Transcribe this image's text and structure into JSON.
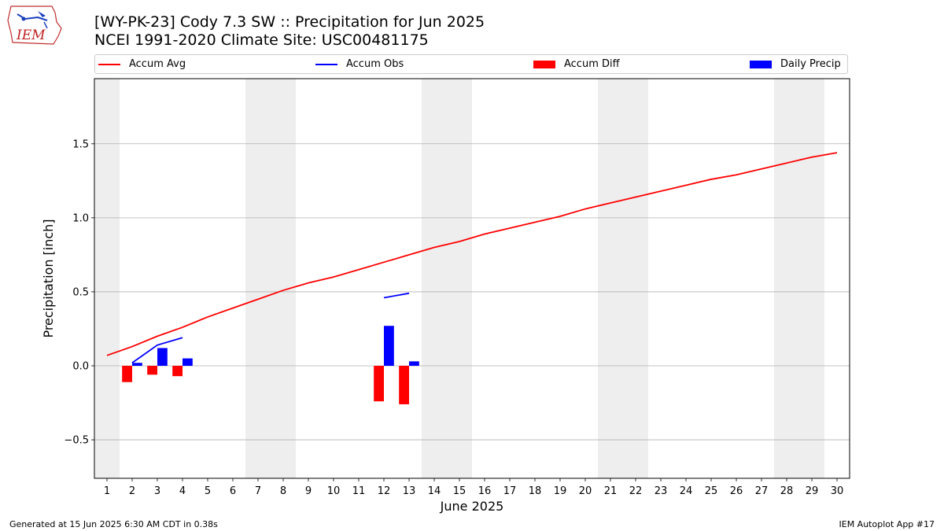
{
  "header": {
    "title_line1": "[WY-PK-23] Cody 7.3 SW :: Precipitation for Jun 2025",
    "title_line2": "NCEI 1991-2020 Climate Site: USC00481175",
    "logo_text": "IEM"
  },
  "footer": {
    "left": "Generated at 15 Jun 2025 6:30 AM CDT in 0.38s",
    "right": "IEM Autoplot App #17"
  },
  "colors": {
    "avg": "#ff0000",
    "obs": "#0000ff",
    "diff": "#ff0000",
    "daily": "#0000ff",
    "weekend_shade": "#eeeeee",
    "grid": "#b0b0b0"
  },
  "chart_data": {
    "type": "line",
    "xlabel": "June 2025",
    "ylabel": "Precipitation [inch]",
    "xlim": [
      0.5,
      30.5
    ],
    "ylim": [
      -0.76,
      1.94
    ],
    "xticks": [
      1,
      2,
      3,
      4,
      5,
      6,
      7,
      8,
      9,
      10,
      11,
      12,
      13,
      14,
      15,
      16,
      17,
      18,
      19,
      20,
      21,
      22,
      23,
      24,
      25,
      26,
      27,
      28,
      29,
      30
    ],
    "yticks": [
      -0.5,
      0.0,
      0.5,
      1.0,
      1.5
    ],
    "ytick_labels": [
      "−0.5",
      "0.0",
      "0.5",
      "1.0",
      "1.5"
    ],
    "grid": "y",
    "legend_position": "top",
    "shaded_days": [
      1,
      7,
      8,
      14,
      15,
      21,
      22,
      28,
      29
    ],
    "series": [
      {
        "name": "Accum Avg",
        "kind": "line",
        "x": [
          1,
          2,
          3,
          4,
          5,
          6,
          7,
          8,
          9,
          10,
          11,
          12,
          13,
          14,
          15,
          16,
          17,
          18,
          19,
          20,
          21,
          22,
          23,
          24,
          25,
          26,
          27,
          28,
          29,
          30
        ],
        "values": [
          0.07,
          0.13,
          0.2,
          0.26,
          0.33,
          0.39,
          0.45,
          0.51,
          0.56,
          0.6,
          0.65,
          0.7,
          0.75,
          0.8,
          0.84,
          0.89,
          0.93,
          0.97,
          1.01,
          1.06,
          1.1,
          1.14,
          1.18,
          1.22,
          1.26,
          1.29,
          1.33,
          1.37,
          1.41,
          1.44
        ]
      },
      {
        "name": "Accum Obs",
        "kind": "line",
        "segments": [
          {
            "x": [
              2,
              3,
              4
            ],
            "values": [
              0.02,
              0.14,
              0.19
            ]
          },
          {
            "x": [
              12,
              13
            ],
            "values": [
              0.46,
              0.49
            ]
          }
        ]
      },
      {
        "name": "Accum Diff",
        "kind": "bar",
        "x": [
          2,
          3,
          4,
          12,
          13
        ],
        "values": [
          -0.11,
          -0.06,
          -0.07,
          -0.24,
          -0.26
        ]
      },
      {
        "name": "Daily Precip",
        "kind": "bar",
        "x": [
          2,
          3,
          4,
          12,
          13
        ],
        "values": [
          0.02,
          0.12,
          0.05,
          0.27,
          0.03
        ]
      }
    ]
  }
}
